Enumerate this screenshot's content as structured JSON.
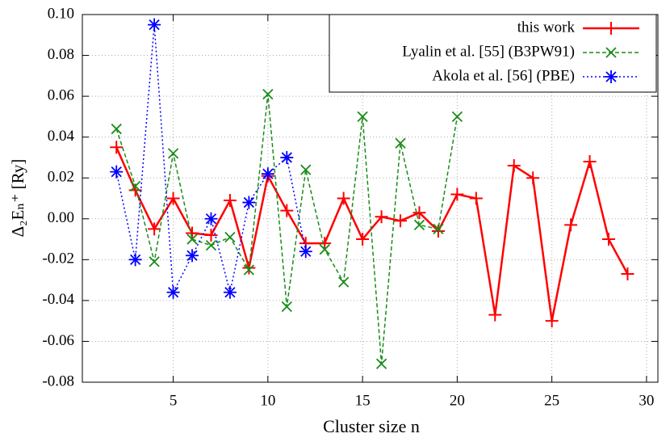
{
  "chart_data": {
    "type": "line",
    "xlabel": "Cluster size n",
    "ylabel": "Δ₂Eₙ⁺ [Ry]",
    "xlim": [
      0.2,
      30.6
    ],
    "xticks": [
      5,
      10,
      15,
      20,
      25,
      30
    ],
    "ylim": [
      -0.08,
      0.1
    ],
    "yticks": [
      -0.08,
      -0.06,
      -0.04,
      -0.02,
      {
        "value": 0,
        "label": "0.00"
      },
      0.02,
      0.04,
      0.06,
      0.08,
      {
        "value": 0.1,
        "label": "0.10"
      }
    ],
    "grid": true,
    "legend": "upper right",
    "series": [
      {
        "name": "this work",
        "color": "#ff0000",
        "marker": "plus",
        "x": [
          2,
          3,
          4,
          5,
          6,
          7,
          8,
          9,
          10,
          11,
          12,
          13,
          14,
          15,
          16,
          17,
          18,
          19,
          20,
          21,
          22,
          23,
          24,
          25,
          26,
          27,
          28,
          29
        ],
        "values": [
          0.035,
          0.014,
          -0.005,
          0.01,
          -0.007,
          -0.008,
          0.009,
          -0.024,
          0.021,
          0.004,
          -0.012,
          -0.012,
          0.01,
          -0.01,
          0.001,
          -0.001,
          0.003,
          -0.006,
          0.012,
          0.01,
          -0.047,
          0.026,
          0.02,
          -0.05,
          -0.003,
          0.028,
          -0.01,
          -0.027
        ]
      },
      {
        "name": "Lyalin et al. [55] (B3PW91)",
        "color": "#1a8c1a",
        "marker": "cross",
        "x": [
          2,
          3,
          4,
          5,
          6,
          7,
          8,
          9,
          10,
          11,
          12,
          13,
          14,
          15,
          16,
          17,
          18,
          19,
          20
        ],
        "values": [
          0.044,
          0.016,
          -0.021,
          0.032,
          -0.01,
          -0.013,
          -0.009,
          -0.025,
          0.061,
          -0.043,
          0.024,
          -0.015,
          -0.031,
          0.05,
          -0.071,
          0.037,
          -0.003,
          -0.005,
          0.05
        ]
      },
      {
        "name": "Akola et al. [56] (PBE)",
        "color": "#0000ff",
        "marker": "star",
        "x": [
          2,
          3,
          4,
          5,
          6,
          7,
          8,
          9,
          10,
          11,
          12
        ],
        "values": [
          0.023,
          -0.02,
          0.095,
          -0.036,
          -0.018,
          0.0,
          -0.036,
          0.008,
          0.022,
          0.03,
          -0.016
        ]
      }
    ]
  }
}
